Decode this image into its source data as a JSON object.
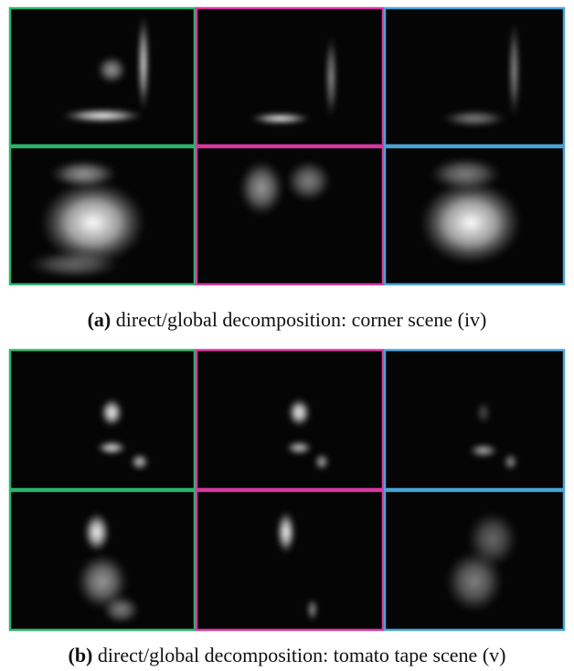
{
  "panels": [
    {
      "label": "(a)",
      "caption": "direct/global decomposition: corner scene (iv)"
    },
    {
      "label": "(b)",
      "caption": "direct/global decomposition: tomato tape scene (v)"
    }
  ]
}
